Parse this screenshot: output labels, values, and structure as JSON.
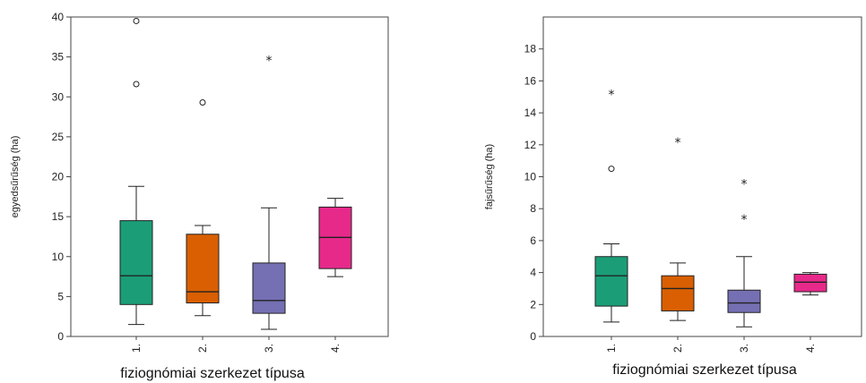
{
  "chart_data": [
    {
      "type": "boxplot",
      "xlabel": "fiziognómiai szerkezet típusa",
      "ylabel": "egyedsűrűség (ha)",
      "ylim": [
        0,
        40
      ],
      "yticks": [
        0,
        5,
        10,
        15,
        20,
        25,
        30,
        35,
        40
      ],
      "grid": false,
      "categories": [
        "1.",
        "2.",
        "3.",
        "4."
      ],
      "colors": [
        "#1b9e77",
        "#d95f02",
        "#7570b3",
        "#e7298a"
      ],
      "boxes": [
        {
          "min": 1.5,
          "q1": 4.0,
          "median": 7.6,
          "q3": 14.5,
          "max": 18.8,
          "outliers": [
            31.6,
            39.5
          ],
          "extremes": []
        },
        {
          "min": 2.6,
          "q1": 4.2,
          "median": 5.6,
          "q3": 12.8,
          "max": 13.9,
          "outliers": [
            29.3
          ],
          "extremes": []
        },
        {
          "min": 0.9,
          "q1": 2.9,
          "median": 4.5,
          "q3": 9.2,
          "max": 16.1,
          "outliers": [],
          "extremes": [
            34.7
          ]
        },
        {
          "min": 7.5,
          "q1": 8.5,
          "median": 12.4,
          "q3": 16.2,
          "max": 17.3,
          "outliers": [],
          "extremes": []
        }
      ]
    },
    {
      "type": "boxplot",
      "xlabel": "fiziognómiai szerkezet típusa",
      "ylabel": "fajsűrűség (ha)",
      "ylim": [
        0,
        20
      ],
      "yticks": [
        0,
        2,
        4,
        6,
        8,
        10,
        12,
        14,
        16,
        18
      ],
      "grid": false,
      "categories": [
        "1.",
        "2.",
        "3.",
        "4."
      ],
      "colors": [
        "#1b9e77",
        "#d95f02",
        "#7570b3",
        "#e7298a"
      ],
      "boxes": [
        {
          "min": 0.9,
          "q1": 1.9,
          "median": 3.8,
          "q3": 5.0,
          "max": 5.8,
          "outliers": [
            10.5
          ],
          "extremes": [
            15.2
          ]
        },
        {
          "min": 1.0,
          "q1": 1.6,
          "median": 3.0,
          "q3": 3.8,
          "max": 4.6,
          "outliers": [],
          "extremes": [
            12.2
          ]
        },
        {
          "min": 0.6,
          "q1": 1.5,
          "median": 2.1,
          "q3": 2.9,
          "max": 5.0,
          "outliers": [],
          "extremes": [
            7.4,
            9.6
          ]
        },
        {
          "min": 2.6,
          "q1": 2.8,
          "median": 3.4,
          "q3": 3.9,
          "max": 4.0,
          "outliers": [],
          "extremes": []
        }
      ]
    }
  ]
}
